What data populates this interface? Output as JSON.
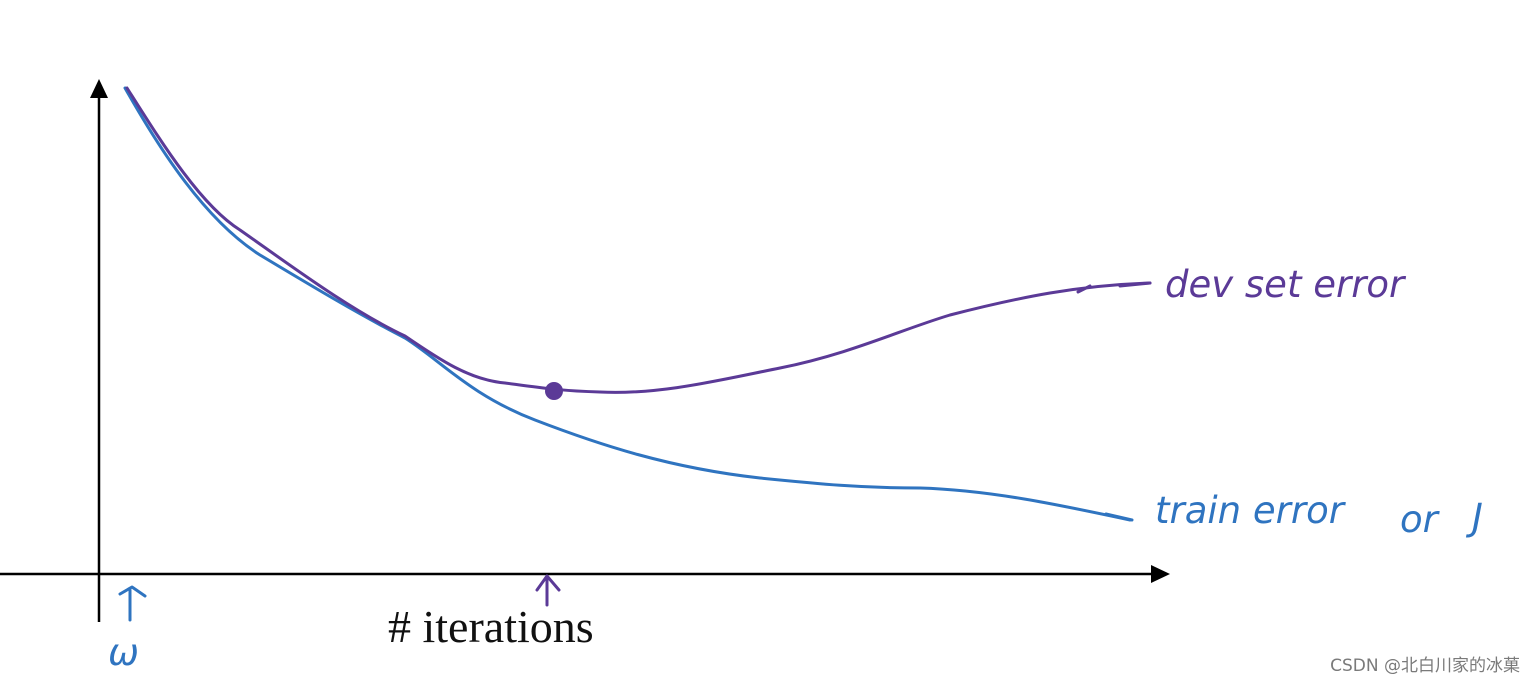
{
  "labels": {
    "x_axis": "# iterations",
    "w_symbol": "ω",
    "dev_curve": "dev set error",
    "train_curve": "train error",
    "or_text": "or",
    "cost_symbol": "J"
  },
  "watermark": "CSDN @北白川家的冰菓",
  "colors": {
    "axis": "#000000",
    "dev_curve": "#5b3a97",
    "train_curve": "#2f74c0",
    "watermark": "#7a7a7a"
  }
}
